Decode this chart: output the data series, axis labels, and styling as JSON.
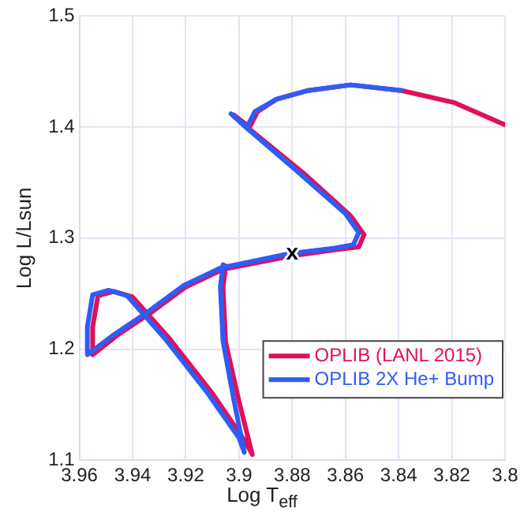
{
  "chart_data": {
    "type": "line",
    "xlabel": "Log T$_{eff}$",
    "ylabel": "Log L/Lsun",
    "xlim": [
      3.96,
      3.8
    ],
    "xticks": [
      3.96,
      3.94,
      3.92,
      3.9,
      3.88,
      3.86,
      3.84,
      3.82,
      3.8
    ],
    "ylim": [
      1.1,
      1.5
    ],
    "yticks": [
      1.1,
      1.2,
      1.3,
      1.4,
      1.5
    ],
    "grid": true,
    "legend": "bottom right",
    "marker": "none",
    "line_style": "solid",
    "annotations": [
      {
        "text": "x",
        "x": 3.88,
        "y": 1.285
      }
    ],
    "series": [
      {
        "name": "OPLIB (LANL 2015)",
        "color": "#e0105a",
        "x": [
          3.8,
          3.819,
          3.839,
          3.858,
          3.874,
          3.886,
          3.893,
          3.896,
          3.902,
          3.896,
          3.876,
          3.858,
          3.853,
          3.855,
          3.862,
          3.88,
          3.906,
          3.92,
          3.933,
          3.946,
          3.955,
          3.955,
          3.953,
          3.947,
          3.94,
          3.926,
          3.91,
          3.898,
          3.895,
          3.9,
          3.905,
          3.906,
          3.905
        ],
        "values": [
          1.402,
          1.422,
          1.433,
          1.438,
          1.433,
          1.425,
          1.414,
          1.4,
          1.411,
          1.398,
          1.359,
          1.32,
          1.303,
          1.292,
          1.29,
          1.284,
          1.272,
          1.256,
          1.233,
          1.212,
          1.195,
          1.22,
          1.248,
          1.252,
          1.247,
          1.209,
          1.16,
          1.118,
          1.105,
          1.153,
          1.206,
          1.255,
          1.275
        ]
      },
      {
        "name": "OPLIB 2X He+ Bump",
        "color": "#2f5cf5",
        "x": [
          3.839,
          3.858,
          3.874,
          3.886,
          3.894,
          3.897,
          3.903,
          3.897,
          3.878,
          3.86,
          3.855,
          3.857,
          3.864,
          3.881,
          3.907,
          3.921,
          3.934,
          3.947,
          3.957,
          3.957,
          3.955,
          3.949,
          3.942,
          3.928,
          3.912,
          3.9,
          3.898,
          3.902,
          3.906,
          3.907,
          3.906
        ],
        "values": [
          1.433,
          1.438,
          1.433,
          1.425,
          1.414,
          1.4,
          1.412,
          1.399,
          1.36,
          1.322,
          1.305,
          1.294,
          1.291,
          1.286,
          1.273,
          1.257,
          1.234,
          1.213,
          1.195,
          1.22,
          1.249,
          1.253,
          1.248,
          1.21,
          1.161,
          1.12,
          1.107,
          1.155,
          1.207,
          1.256,
          1.276
        ]
      }
    ]
  }
}
